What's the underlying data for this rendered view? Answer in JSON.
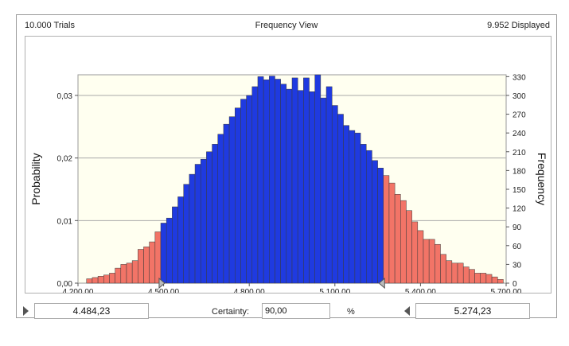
{
  "header": {
    "trials": "10.000 Trials",
    "view": "Frequency View",
    "displayed": "9.952 Displayed"
  },
  "controls": {
    "left_value": "4.484,23",
    "certainty_label": "Certainty:",
    "certainty_value": "90,00",
    "percent_sign": "%",
    "right_value": "5.274,23"
  },
  "colors": {
    "plot_background": "#fffff0",
    "bar_in_range": "#1f3ae0",
    "bar_out_of_range": "#f27467",
    "bar_edge": "#3a3a3a"
  },
  "chart_data": {
    "type": "bar",
    "x_ticks": [
      "4.200,00",
      "4.500,00",
      "4.800,00",
      "5.100,00",
      "5.400,00",
      "5.700,00"
    ],
    "x_range": [
      4200,
      5700
    ],
    "y_left_label": "Probability",
    "y_left_ticks": [
      "0,00",
      "0,01",
      "0,02",
      "0,03"
    ],
    "y_left_range": [
      0,
      0.0333
    ],
    "y_right_label": "Frequency",
    "y_right_ticks": [
      "0",
      "30",
      "60",
      "90",
      "120",
      "150",
      "180",
      "210",
      "240",
      "270",
      "300",
      "330"
    ],
    "y_right_range": [
      0,
      333
    ],
    "grid": "horizontal",
    "certainty_range": [
      4484.23,
      5274.23
    ],
    "bin_start": 4230,
    "bin_width": 20,
    "frequencies": [
      7,
      9,
      11,
      13,
      16,
      24,
      30,
      32,
      36,
      54,
      58,
      66,
      82,
      96,
      104,
      122,
      138,
      158,
      174,
      190,
      198,
      210,
      222,
      238,
      254,
      266,
      280,
      294,
      300,
      314,
      330,
      325,
      331,
      326,
      318,
      310,
      328,
      308,
      328,
      306,
      333,
      296,
      314,
      284,
      270,
      252,
      244,
      240,
      222,
      212,
      196,
      184,
      172,
      160,
      142,
      132,
      116,
      98,
      84,
      70,
      70,
      62,
      46,
      36,
      32,
      32,
      26,
      22,
      16,
      16,
      14,
      10,
      6
    ]
  }
}
